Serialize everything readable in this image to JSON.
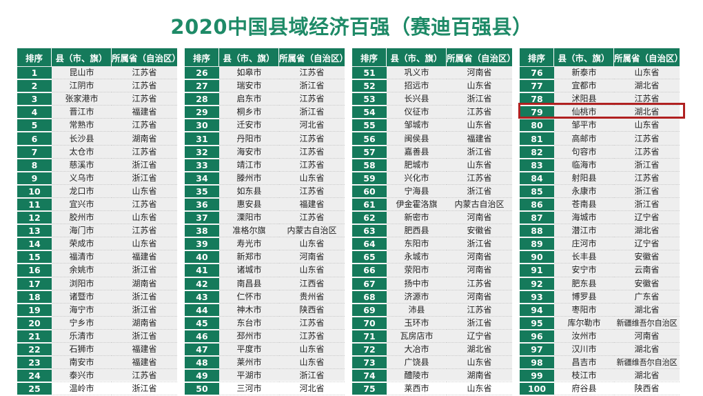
{
  "title": "2020中国县域经济百强（赛迪百强县）",
  "headers": {
    "rank": "排序",
    "county": "县（市、旗）",
    "province": "所属省（自治区）"
  },
  "highlight_rank": "79",
  "colors": {
    "title": "#1e8a67",
    "header_bg": "#157a5b",
    "highlight_border": "#b02020"
  },
  "rows": [
    [
      "1",
      "昆山市",
      "江苏省"
    ],
    [
      "2",
      "江阴市",
      "江苏省"
    ],
    [
      "3",
      "张家港市",
      "江苏省"
    ],
    [
      "4",
      "晋江市",
      "福建省"
    ],
    [
      "5",
      "常熟市",
      "江苏省"
    ],
    [
      "6",
      "长沙县",
      "湖南省"
    ],
    [
      "7",
      "太仓市",
      "江苏省"
    ],
    [
      "8",
      "慈溪市",
      "浙江省"
    ],
    [
      "9",
      "义乌市",
      "浙江省"
    ],
    [
      "10",
      "龙口市",
      "山东省"
    ],
    [
      "11",
      "宜兴市",
      "江苏省"
    ],
    [
      "12",
      "胶州市",
      "山东省"
    ],
    [
      "13",
      "海门市",
      "江苏省"
    ],
    [
      "14",
      "荣成市",
      "山东省"
    ],
    [
      "15",
      "福清市",
      "福建省"
    ],
    [
      "16",
      "余姚市",
      "浙江省"
    ],
    [
      "17",
      "浏阳市",
      "湖南省"
    ],
    [
      "18",
      "诸暨市",
      "浙江省"
    ],
    [
      "19",
      "海宁市",
      "浙江省"
    ],
    [
      "20",
      "宁乡市",
      "湖南省"
    ],
    [
      "21",
      "乐清市",
      "浙江省"
    ],
    [
      "22",
      "石狮市",
      "福建省"
    ],
    [
      "23",
      "南安市",
      "福建省"
    ],
    [
      "24",
      "泰兴市",
      "江苏省"
    ],
    [
      "25",
      "温岭市",
      "浙江省"
    ],
    [
      "26",
      "如皋市",
      "江苏省"
    ],
    [
      "27",
      "瑞安市",
      "浙江省"
    ],
    [
      "28",
      "启东市",
      "江苏省"
    ],
    [
      "29",
      "桐乡市",
      "浙江省"
    ],
    [
      "30",
      "迁安市",
      "河北省"
    ],
    [
      "31",
      "丹阳市",
      "江苏省"
    ],
    [
      "32",
      "海安市",
      "江苏省"
    ],
    [
      "33",
      "靖江市",
      "江苏省"
    ],
    [
      "34",
      "滕州市",
      "山东省"
    ],
    [
      "35",
      "如东县",
      "江苏省"
    ],
    [
      "36",
      "惠安县",
      "福建省"
    ],
    [
      "37",
      "溧阳市",
      "江苏省"
    ],
    [
      "38",
      "准格尔旗",
      "内蒙古自治区"
    ],
    [
      "39",
      "寿光市",
      "山东省"
    ],
    [
      "40",
      "新郑市",
      "河南省"
    ],
    [
      "41",
      "诸城市",
      "山东省"
    ],
    [
      "42",
      "南昌县",
      "江西省"
    ],
    [
      "43",
      "仁怀市",
      "贵州省"
    ],
    [
      "44",
      "神木市",
      "陕西省"
    ],
    [
      "45",
      "东台市",
      "江苏省"
    ],
    [
      "46",
      "邳州市",
      "江苏省"
    ],
    [
      "47",
      "平度市",
      "山东省"
    ],
    [
      "48",
      "莱州市",
      "山东省"
    ],
    [
      "49",
      "平湖市",
      "浙江省"
    ],
    [
      "50",
      "三河市",
      "河北省"
    ],
    [
      "51",
      "巩义市",
      "河南省"
    ],
    [
      "52",
      "招远市",
      "山东省"
    ],
    [
      "53",
      "长兴县",
      "浙江省"
    ],
    [
      "54",
      "仪征市",
      "江苏省"
    ],
    [
      "55",
      "邹城市",
      "山东省"
    ],
    [
      "56",
      "闽侯县",
      "福建省"
    ],
    [
      "57",
      "嘉善县",
      "浙江省"
    ],
    [
      "58",
      "肥城市",
      "山东省"
    ],
    [
      "59",
      "兴化市",
      "江苏省"
    ],
    [
      "60",
      "宁海县",
      "浙江省"
    ],
    [
      "61",
      "伊金霍洛旗",
      "内蒙古自治区"
    ],
    [
      "62",
      "新密市",
      "河南省"
    ],
    [
      "63",
      "肥西县",
      "安徽省"
    ],
    [
      "64",
      "东阳市",
      "浙江省"
    ],
    [
      "65",
      "永城市",
      "河南省"
    ],
    [
      "66",
      "荥阳市",
      "河南省"
    ],
    [
      "67",
      "扬中市",
      "江苏省"
    ],
    [
      "68",
      "济源市",
      "河南省"
    ],
    [
      "69",
      "沛县",
      "江苏省"
    ],
    [
      "70",
      "玉环市",
      "浙江省"
    ],
    [
      "71",
      "瓦房店市",
      "辽宁省"
    ],
    [
      "72",
      "大冶市",
      "湖北省"
    ],
    [
      "73",
      "广饶县",
      "山东省"
    ],
    [
      "74",
      "醴陵市",
      "湖南省"
    ],
    [
      "75",
      "莱西市",
      "山东省"
    ],
    [
      "76",
      "新泰市",
      "山东省"
    ],
    [
      "77",
      "宜都市",
      "湖北省"
    ],
    [
      "78",
      "沭阳县",
      "江苏省"
    ],
    [
      "79",
      "仙桃市",
      "湖北省"
    ],
    [
      "80",
      "邹平市",
      "山东省"
    ],
    [
      "81",
      "高邮市",
      "江苏省"
    ],
    [
      "82",
      "句容市",
      "江苏省"
    ],
    [
      "83",
      "临海市",
      "浙江省"
    ],
    [
      "84",
      "射阳县",
      "江苏省"
    ],
    [
      "85",
      "永康市",
      "浙江省"
    ],
    [
      "86",
      "苍南县",
      "浙江省"
    ],
    [
      "87",
      "海城市",
      "辽宁省"
    ],
    [
      "88",
      "潜江市",
      "湖北省"
    ],
    [
      "89",
      "庄河市",
      "辽宁省"
    ],
    [
      "90",
      "长丰县",
      "安徽省"
    ],
    [
      "91",
      "安宁市",
      "云南省"
    ],
    [
      "92",
      "肥东县",
      "安徽省"
    ],
    [
      "93",
      "博罗县",
      "广东省"
    ],
    [
      "94",
      "枣阳市",
      "湖北省"
    ],
    [
      "95",
      "库尔勒市",
      "新疆维吾尔自治区"
    ],
    [
      "96",
      "汝州市",
      "河南省"
    ],
    [
      "97",
      "汉川市",
      "湖北省"
    ],
    [
      "98",
      "昌吉市",
      "新疆维吾尔自治区"
    ],
    [
      "99",
      "枝江市",
      "湖北省"
    ],
    [
      "100",
      "府谷县",
      "陕西省"
    ]
  ]
}
